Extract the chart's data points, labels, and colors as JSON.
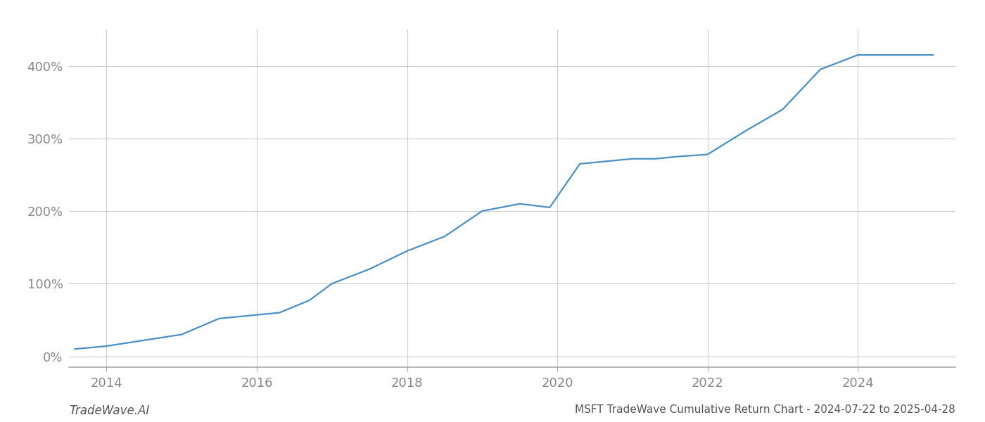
{
  "title": "MSFT TradeWave Cumulative Return Chart - 2024-07-22 to 2025-04-28",
  "watermark": "TradeWave.AI",
  "line_color": "#4a90c4",
  "background_color": "#ffffff",
  "grid_color": "#cccccc",
  "x_years": [
    2013.58,
    2014.0,
    2014.5,
    2015.0,
    2015.5,
    2016.0,
    2016.3,
    2016.7,
    2017.0,
    2017.5,
    2018.0,
    2018.5,
    2019.0,
    2019.5,
    2019.9,
    2020.3,
    2020.6,
    2021.0,
    2021.3,
    2021.6,
    2022.0,
    2022.5,
    2023.0,
    2023.5,
    2024.0,
    2024.5,
    2025.0
  ],
  "y_values": [
    10,
    14,
    22,
    30,
    52,
    57,
    60,
    77,
    100,
    120,
    145,
    165,
    200,
    210,
    205,
    265,
    268,
    272,
    272,
    275,
    278,
    310,
    340,
    395,
    415,
    415,
    415
  ],
  "xlim": [
    2013.5,
    2025.3
  ],
  "ylim": [
    -15,
    450
  ],
  "yticks": [
    0,
    100,
    200,
    300,
    400
  ],
  "ytick_labels": [
    "0%",
    "100%",
    "200%",
    "300%",
    "400%"
  ],
  "xticks": [
    2014,
    2016,
    2018,
    2020,
    2022,
    2024
  ],
  "xtick_labels": [
    "2014",
    "2016",
    "2018",
    "2020",
    "2022",
    "2024"
  ],
  "title_fontsize": 11,
  "tick_fontsize": 13,
  "watermark_fontsize": 12,
  "line_width": 1.6
}
